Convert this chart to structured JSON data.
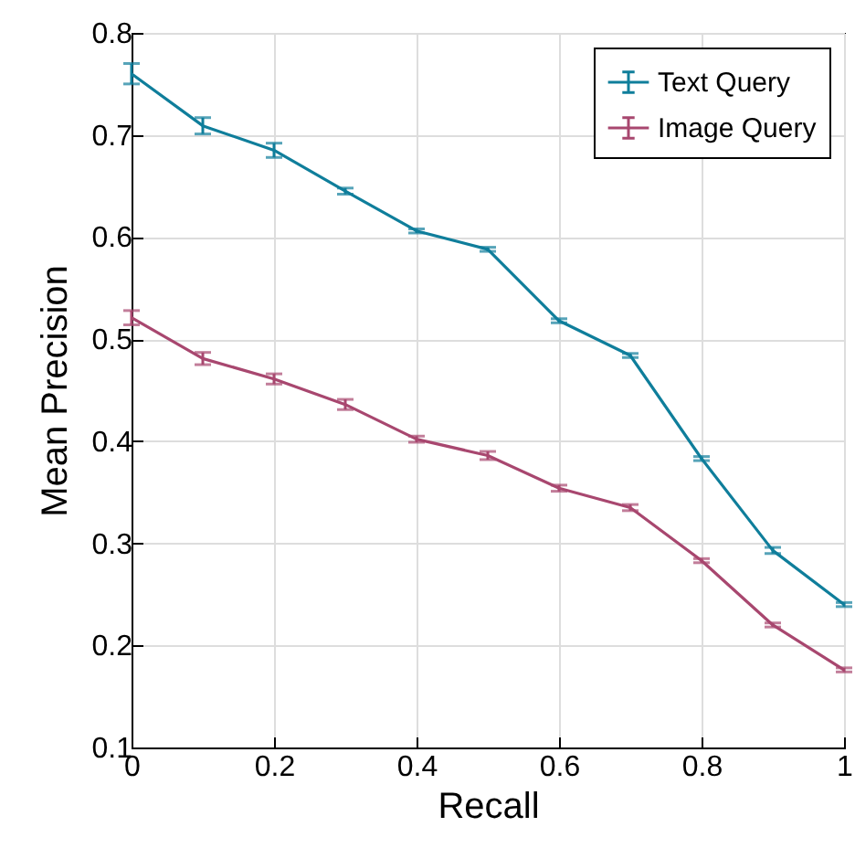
{
  "chart_data": {
    "type": "line",
    "xlabel": "Recall",
    "ylabel": "Mean Precision",
    "x": [
      0,
      0.1,
      0.2,
      0.3,
      0.4,
      0.5,
      0.6,
      0.7,
      0.8,
      0.9,
      1
    ],
    "xlim": [
      0,
      1
    ],
    "xticks": [
      0,
      0.2,
      0.4,
      0.6,
      0.8,
      1
    ],
    "ylim": [
      0.1,
      0.8
    ],
    "yticks": [
      0.1,
      0.2,
      0.3,
      0.4,
      0.5,
      0.6,
      0.7,
      0.8
    ],
    "grid": true,
    "legend": "top right",
    "marker": "none",
    "line_style": "solid",
    "series": [
      {
        "name": "Text Query",
        "color": "#0f7e9b",
        "values": [
          0.76,
          0.709,
          0.685,
          0.645,
          0.606,
          0.588,
          0.518,
          0.484,
          0.383,
          0.293,
          0.24
        ],
        "errors": [
          0.01,
          0.008,
          0.007,
          0.003,
          0.002,
          0.002,
          0.002,
          0.002,
          0.002,
          0.003,
          0.002
        ]
      },
      {
        "name": "Image Query",
        "color": "#a8476f",
        "values": [
          0.521,
          0.481,
          0.461,
          0.436,
          0.402,
          0.386,
          0.354,
          0.335,
          0.283,
          0.22,
          0.176
        ],
        "errors": [
          0.007,
          0.006,
          0.005,
          0.005,
          0.003,
          0.004,
          0.003,
          0.003,
          0.002,
          0.002,
          0.002
        ]
      }
    ]
  }
}
